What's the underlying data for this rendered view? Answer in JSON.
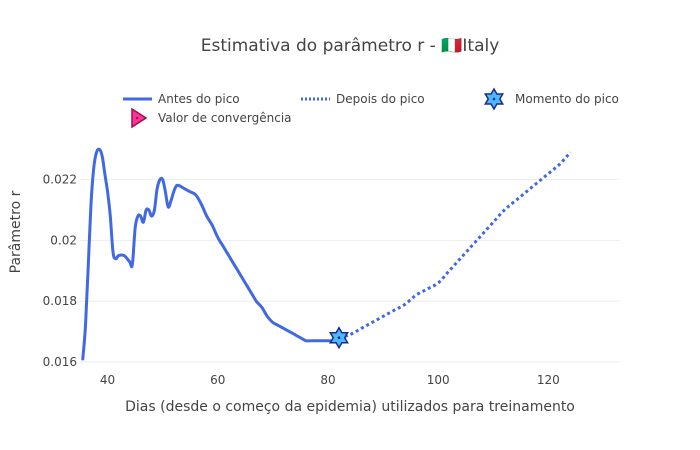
{
  "chart_data": {
    "type": "line",
    "title": "Estimativa do parâmetro r - 🇮🇹Italy",
    "xlabel": "Dias (desde o começo da epidemia) utilizados para treinamento",
    "ylabel": "Parâmetro r",
    "xlim": [
      35,
      133
    ],
    "ylim": [
      0.016,
      0.0237
    ],
    "x_ticks": [
      40,
      60,
      80,
      100,
      120
    ],
    "y_ticks": [
      0.016,
      0.018,
      0.02,
      0.022
    ],
    "x_tick_labels": [
      "40",
      "60",
      "80",
      "100",
      "120"
    ],
    "y_tick_labels": [
      "0.016",
      "0.018",
      "0.02",
      "0.022"
    ],
    "grid": true,
    "legend_position": "top",
    "series": [
      {
        "name": "Antes do pico",
        "style": "solid",
        "color": "#4169e1",
        "x": [
          35.5,
          36,
          36.5,
          37,
          37.5,
          38,
          38.5,
          39,
          39.5,
          40,
          40.5,
          41,
          41.5,
          42,
          43,
          44,
          44.5,
          45,
          45.5,
          46,
          46.5,
          47,
          47.5,
          48,
          48.5,
          49,
          49.5,
          50,
          50.5,
          51,
          51.5,
          52,
          52.5,
          53,
          54,
          55,
          56,
          57,
          58,
          59,
          60,
          61,
          62,
          63,
          64,
          65,
          66,
          67,
          68,
          69,
          70,
          71,
          72,
          73,
          74,
          75,
          76,
          77,
          78,
          79,
          80,
          81,
          82
        ],
        "y": [
          0.0161,
          0.0172,
          0.0192,
          0.0212,
          0.0224,
          0.0229,
          0.023,
          0.0228,
          0.0222,
          0.0216,
          0.0208,
          0.0196,
          0.0194,
          0.0195,
          0.0195,
          0.0193,
          0.0192,
          0.0204,
          0.0208,
          0.0208,
          0.0206,
          0.021,
          0.021,
          0.0208,
          0.021,
          0.0217,
          0.022,
          0.022,
          0.0216,
          0.0211,
          0.0213,
          0.0216,
          0.0218,
          0.0218,
          0.0217,
          0.0216,
          0.0215,
          0.0212,
          0.0208,
          0.0205,
          0.0201,
          0.0198,
          0.0195,
          0.0192,
          0.0189,
          0.0186,
          0.0183,
          0.018,
          0.0178,
          0.0175,
          0.0173,
          0.0172,
          0.0171,
          0.017,
          0.0169,
          0.0168,
          0.0167,
          0.0167,
          0.0167,
          0.0167,
          0.0167,
          0.0167,
          0.0168
        ]
      },
      {
        "name": "Depois do pico",
        "style": "dotted",
        "color": "#4169e1",
        "x": [
          82,
          84,
          86,
          88,
          90,
          92,
          94,
          96,
          98,
          100,
          102,
          104,
          106,
          108,
          110,
          112,
          114,
          116,
          118,
          120,
          122,
          124
        ],
        "y": [
          0.0168,
          0.0169,
          0.0171,
          0.0173,
          0.0175,
          0.0177,
          0.0179,
          0.0182,
          0.0184,
          0.0186,
          0.019,
          0.0194,
          0.0198,
          0.0202,
          0.0206,
          0.021,
          0.0213,
          0.0216,
          0.0219,
          0.0222,
          0.0225,
          0.0229
        ]
      }
    ],
    "markers": [
      {
        "name": "Momento do pico",
        "symbol": "hexagram",
        "x": 82,
        "y": 0.0168,
        "color": "#4db8ff",
        "edge_color": "#1a2a8a"
      },
      {
        "name": "Valor de convergência",
        "symbol": "triangle-right",
        "color": "#ff3399",
        "edge_color": "#9b1048"
      }
    ]
  }
}
